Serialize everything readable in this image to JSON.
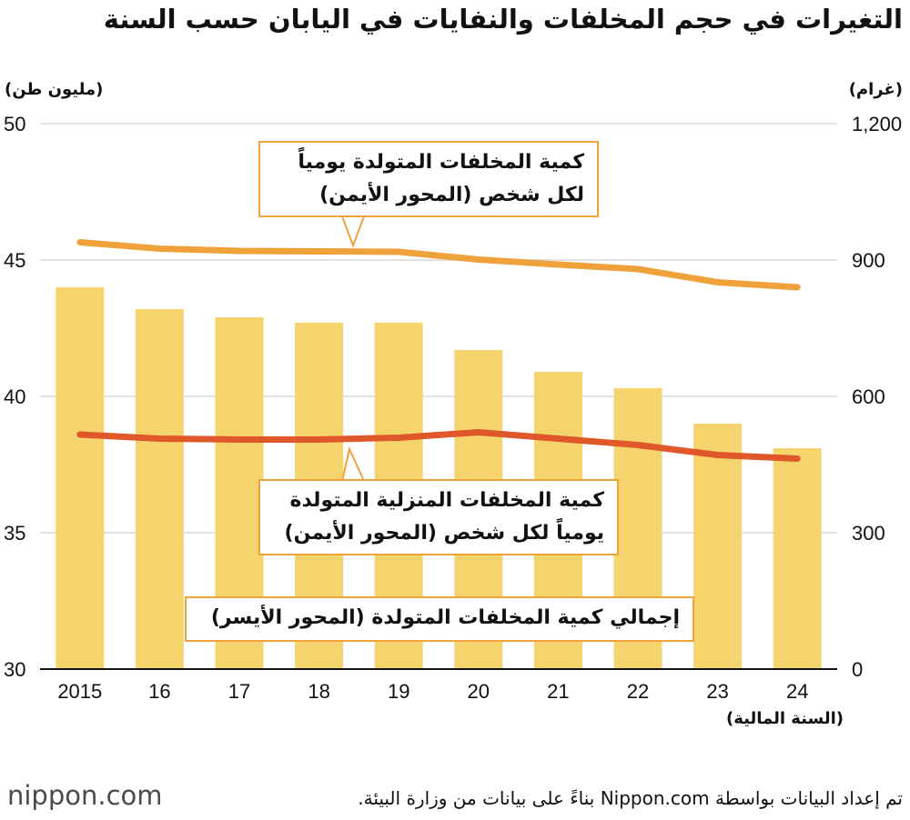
{
  "title": "التغيرات في حجم المخلفات والنفايات في اليابان حسب السنة",
  "left_unit": "(مليون طن)",
  "right_unit": "(غرام)",
  "x_unit": "(السنة المالية)",
  "callouts": {
    "per_person_daily": [
      "كمية المخلفات المتولدة يومياً",
      "لكل شخص (المحور الأيمن)"
    ],
    "household_daily": [
      "كمية المخلفات المنزلية المتولدة",
      "يومياً لكل شخص (المحور الأيمن)"
    ],
    "total": [
      "إجمالي كمية المخلفات المتولدة (المحور الأيسر)"
    ]
  },
  "footer": {
    "logo": "nippon.com",
    "source": "تم إعداد البيانات بواسطة Nippon.com بناءً على بيانات من وزارة البيئة."
  },
  "colors": {
    "bar": "#f5d36d",
    "per_person_line": "#f0a23a",
    "household_line": "#e0572a",
    "gridline": "#d9d9d9"
  },
  "chart_data": {
    "type": "bar",
    "categories": [
      "2015",
      "16",
      "17",
      "18",
      "19",
      "20",
      "21",
      "22",
      "23",
      "24"
    ],
    "xlabel": "(السنة المالية)",
    "y_left": {
      "label": "(مليون طن)",
      "range": [
        30,
        50
      ],
      "ticks": [
        "30",
        "35",
        "40",
        "45",
        "50"
      ]
    },
    "y_right": {
      "label": "(غرام)",
      "range": [
        0,
        1200
      ],
      "ticks": [
        "0",
        "300",
        "600",
        "900",
        "1,200"
      ]
    },
    "grid": true,
    "series": [
      {
        "name": "إجمالي كمية المخلفات المتولدة",
        "type": "bar",
        "axis": "left",
        "values": [
          44.0,
          43.2,
          42.9,
          42.7,
          42.7,
          41.7,
          40.9,
          40.3,
          39.0,
          38.1
        ]
      },
      {
        "name": "كمية المخلفات المتولدة يومياً لكل شخص",
        "type": "line",
        "axis": "right",
        "values": [
          939,
          925,
          920,
          919,
          918,
          901,
          890,
          880,
          851,
          840
        ]
      },
      {
        "name": "كمية المخلفات المنزلية المتولدة يومياً لكل شخص",
        "type": "line",
        "axis": "right",
        "values": [
          516,
          507,
          505,
          505,
          509,
          521,
          507,
          493,
          471,
          463
        ]
      }
    ]
  }
}
